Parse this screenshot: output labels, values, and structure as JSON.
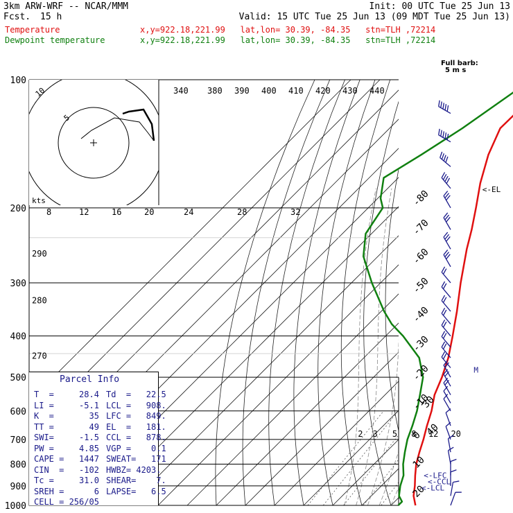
{
  "header": {
    "model": "3km ARW-WRF -- NCAR/MMM",
    "fcst_label": "Fcst.",
    "fcst_value": "15 h",
    "init": "Init: 00 UTC Tue 25 Jun 13",
    "valid": "Valid: 15 UTC Tue 25 Jun 13 (09 MDT Tue 25 Jun 13)"
  },
  "legend": [
    {
      "label": "Temperature",
      "info": "x,y=922.18,221.99   lat,lon= 30.39, -84.35   stn=TLH ,72214",
      "color": "#e01010"
    },
    {
      "label": "Dewpoint temperature",
      "info": "x,y=922.18,221.99   lat,lon= 30.39, -84.35   stn=TLH ,72214",
      "color": "#108010"
    }
  ],
  "colors": {
    "axis": "#000000",
    "moist": "#888888",
    "mixing": "#555555",
    "wind": "#1a1a8a",
    "info_text": "#1a1a8a"
  },
  "chart_data": {
    "type": "line",
    "pressure_levels": [
      100,
      200,
      300,
      400,
      500,
      600,
      700,
      800,
      900,
      1000
    ],
    "pressure_labels": [
      "100",
      "200",
      "300",
      "400",
      "500",
      "600",
      "700",
      "800",
      "900",
      "1000"
    ],
    "temp_isotherm_labels": [
      {
        "t": -80,
        "label": "-80"
      },
      {
        "t": -70,
        "label": "-70"
      },
      {
        "t": -60,
        "label": "-60"
      },
      {
        "t": -50,
        "label": "-50"
      },
      {
        "t": -40,
        "label": "-40"
      },
      {
        "t": -30,
        "label": "-30"
      },
      {
        "t": -20,
        "label": "-20"
      },
      {
        "t": -10,
        "label": "-10"
      },
      {
        "t": 0,
        "label": "0"
      },
      {
        "t": 10,
        "label": "10"
      },
      {
        "t": 20,
        "label": "20"
      },
      {
        "t": 30,
        "label": "30"
      },
      {
        "t": 40,
        "label": "40"
      }
    ],
    "theta_e_labels": [
      "340",
      "380",
      "390",
      "400",
      "410",
      "420",
      "430",
      "440"
    ],
    "theta_labels": [
      {
        "p": 260,
        "label": "290"
      },
      {
        "p": 335,
        "label": "280"
      },
      {
        "p": 452,
        "label": "270"
      }
    ],
    "mixing_ratio_labels": [
      "2",
      "3",
      "5",
      "8",
      "12",
      "20"
    ],
    "temperature": [
      {
        "p": 100,
        "t": -71.5
      },
      {
        "p": 130,
        "t": -72
      },
      {
        "p": 150,
        "t": -67
      },
      {
        "p": 175,
        "t": -60
      },
      {
        "p": 200,
        "t": -53
      },
      {
        "p": 225,
        "t": -47
      },
      {
        "p": 250,
        "t": -42
      },
      {
        "p": 300,
        "t": -32.5
      },
      {
        "p": 350,
        "t": -24
      },
      {
        "p": 400,
        "t": -17
      },
      {
        "p": 450,
        "t": -11
      },
      {
        "p": 500,
        "t": -6.5
      },
      {
        "p": 550,
        "t": -3
      },
      {
        "p": 600,
        "t": 1.5
      },
      {
        "p": 650,
        "t": 5
      },
      {
        "p": 700,
        "t": 8.5
      },
      {
        "p": 750,
        "t": 11.5
      },
      {
        "p": 800,
        "t": 14.5
      },
      {
        "p": 850,
        "t": 18
      },
      {
        "p": 900,
        "t": 21.5
      },
      {
        "p": 950,
        "t": 24.5
      },
      {
        "p": 1000,
        "t": 28.4
      }
    ],
    "dewpoint": [
      {
        "p": 100,
        "t": -78
      },
      {
        "p": 130,
        "t": -85
      },
      {
        "p": 150,
        "t": -90
      },
      {
        "p": 170,
        "t": -95
      },
      {
        "p": 190,
        "t": -89
      },
      {
        "p": 200,
        "t": -85
      },
      {
        "p": 230,
        "t": -82
      },
      {
        "p": 260,
        "t": -75
      },
      {
        "p": 300,
        "t": -63
      },
      {
        "p": 350,
        "t": -49
      },
      {
        "p": 375,
        "t": -42
      },
      {
        "p": 400,
        "t": -34
      },
      {
        "p": 450,
        "t": -21
      },
      {
        "p": 500,
        "t": -13
      },
      {
        "p": 550,
        "t": -8
      },
      {
        "p": 600,
        "t": -3.5
      },
      {
        "p": 650,
        "t": 0
      },
      {
        "p": 700,
        "t": 3
      },
      {
        "p": 750,
        "t": 6.5
      },
      {
        "p": 800,
        "t": 10
      },
      {
        "p": 850,
        "t": 14
      },
      {
        "p": 900,
        "t": 16.5
      },
      {
        "p": 950,
        "t": 19.5
      },
      {
        "p": 980,
        "t": 22.5
      },
      {
        "p": 1000,
        "t": 22.5
      }
    ],
    "level_markers": [
      {
        "p": 181,
        "label": "<-EL",
        "side": "right"
      },
      {
        "p": 480,
        "label": "M",
        "side": "right"
      },
      {
        "p": 849,
        "label": "<-LFC",
        "side": "right"
      },
      {
        "p": 878,
        "label": "<-CCL",
        "side": "right"
      },
      {
        "p": 908,
        "label": "<-LCL",
        "side": "right"
      }
    ],
    "hodograph": {
      "x_labels": [
        "8",
        "12",
        "16",
        "20",
        "24",
        "28",
        "32"
      ],
      "units_label": "kts",
      "ring_labels": [
        "5",
        "10"
      ],
      "points": [
        [
          -0.6,
          -0.8
        ],
        [
          -0.1,
          -0.4
        ],
        [
          1.0,
          0.2
        ],
        [
          2.2,
          0.0
        ],
        [
          2.6,
          -0.5
        ],
        [
          2.9,
          -0.9
        ],
        [
          2.8,
          -0.1
        ],
        [
          2.4,
          0.6
        ],
        [
          1.7,
          0.5
        ],
        [
          1.4,
          0.4
        ]
      ]
    },
    "wind_barb_key": "Full barb: 5 m s",
    "wind_barbs": [
      {
        "p": 120,
        "speed": 25,
        "dir": 300
      },
      {
        "p": 140,
        "speed": 25,
        "dir": 300
      },
      {
        "p": 160,
        "speed": 20,
        "dir": 310
      },
      {
        "p": 180,
        "speed": 20,
        "dir": 320
      },
      {
        "p": 200,
        "speed": 15,
        "dir": 330
      },
      {
        "p": 225,
        "speed": 15,
        "dir": 330
      },
      {
        "p": 250,
        "speed": 15,
        "dir": 330
      },
      {
        "p": 275,
        "speed": 15,
        "dir": 330
      },
      {
        "p": 300,
        "speed": 10,
        "dir": 320
      },
      {
        "p": 325,
        "speed": 10,
        "dir": 320
      },
      {
        "p": 350,
        "speed": 10,
        "dir": 320
      },
      {
        "p": 375,
        "speed": 10,
        "dir": 320
      },
      {
        "p": 400,
        "speed": 10,
        "dir": 320
      },
      {
        "p": 425,
        "speed": 10,
        "dir": 320
      },
      {
        "p": 450,
        "speed": 10,
        "dir": 320
      },
      {
        "p": 475,
        "speed": 10,
        "dir": 320
      },
      {
        "p": 500,
        "speed": 10,
        "dir": 330
      },
      {
        "p": 525,
        "speed": 10,
        "dir": 330
      },
      {
        "p": 550,
        "speed": 10,
        "dir": 330
      },
      {
        "p": 575,
        "speed": 5,
        "dir": 330
      },
      {
        "p": 600,
        "speed": 5,
        "dir": 330
      },
      {
        "p": 650,
        "speed": 5,
        "dir": 340
      },
      {
        "p": 700,
        "speed": 5,
        "dir": 340
      },
      {
        "p": 750,
        "speed": 5,
        "dir": 350
      },
      {
        "p": 800,
        "speed": 5,
        "dir": 350
      },
      {
        "p": 850,
        "speed": 5,
        "dir": 360
      },
      {
        "p": 900,
        "speed": 5,
        "dir": 360
      },
      {
        "p": 950,
        "speed": 5,
        "dir": 10
      },
      {
        "p": 1000,
        "speed": 5,
        "dir": 20
      }
    ]
  },
  "parcel_info": {
    "title": "Parcel Info",
    "rows": [
      [
        "T  =     28.4",
        "Td  =   22.5"
      ],
      [
        "LI =     -5.1",
        "LCL =   908."
      ],
      [
        "K  =       35",
        "LFC =   849."
      ],
      [
        "TT =       49",
        "EL  =   181."
      ],
      [
        "SWI=     -1.5",
        "CCL =   878."
      ],
      [
        "PW =     4.85",
        "VGP =    0.1"
      ],
      [
        "CAPE =   1447",
        "SWEAT=   171"
      ],
      [
        "CIN  =   -102",
        "HWBZ= 4203."
      ],
      [
        "Tc =     31.0",
        "SHEAR=    7."
      ],
      [
        "SREH =      6",
        "LAPSE=   6.5"
      ],
      [
        "CELL = 256/05",
        ""
      ]
    ]
  }
}
